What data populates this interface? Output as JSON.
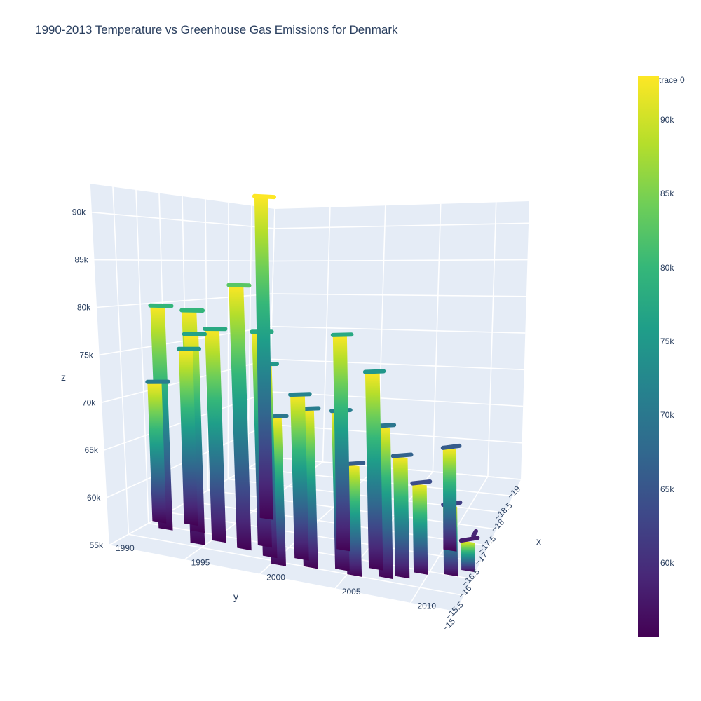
{
  "chart_data": {
    "type": "surface",
    "title": "1990-2013 Temperature vs Greenhouse Gas Emissions for Denmark",
    "trace_name": "trace 0",
    "colorscale": "Viridis",
    "colorscale_stops": [
      "#440154",
      "#482878",
      "#3e4989",
      "#31688e",
      "#26828e",
      "#1f9e89",
      "#35b779",
      "#6ece58",
      "#b5de2b",
      "#fde725"
    ],
    "x_axis": {
      "title": "x",
      "range": [
        1990,
        2013
      ],
      "ticks": [
        "1990",
        "1995",
        "2000",
        "2005",
        "2010"
      ]
    },
    "y_axis": {
      "title": "y",
      "range": [
        -19,
        -15
      ],
      "ticks": [
        "−19",
        "−18.5",
        "−18",
        "−17.5",
        "−17",
        "−16.5",
        "−16",
        "−15.5",
        "−15"
      ]
    },
    "z_axis": {
      "title": "z",
      "range": [
        55000,
        93000
      ],
      "ticks": [
        "55k",
        "60k",
        "65k",
        "70k",
        "75k",
        "80k",
        "85k",
        "90k"
      ]
    },
    "colorbar": {
      "range": [
        55000,
        93000
      ],
      "ticks": [
        "60k",
        "65k",
        "70k",
        "75k",
        "80k",
        "85k",
        "90k"
      ]
    },
    "grid": true,
    "legend_position": "top-right",
    "series": [
      {
        "year": 1990,
        "temperature": -16.1,
        "emissions": 71000
      },
      {
        "year": 1991,
        "temperature": -15.9,
        "emissions": 80000
      },
      {
        "year": 1992,
        "temperature": -16.2,
        "emissions": 75000
      },
      {
        "year": 1993,
        "temperature": -16.0,
        "emissions": 77000
      },
      {
        "year": 1994,
        "temperature": -15.6,
        "emissions": 80000
      },
      {
        "year": 1995,
        "temperature": -15.8,
        "emissions": 78000
      },
      {
        "year": 1996,
        "temperature": -16.8,
        "emissions": 93000
      },
      {
        "year": 1997,
        "temperature": -15.7,
        "emissions": 83000
      },
      {
        "year": 1998,
        "temperature": -15.9,
        "emissions": 78000
      },
      {
        "year": 1999,
        "temperature": -15.6,
        "emissions": 75000
      },
      {
        "year": 2000,
        "temperature": -15.4,
        "emissions": 70000
      },
      {
        "year": 2001,
        "temperature": -15.7,
        "emissions": 72000
      },
      {
        "year": 2002,
        "temperature": -15.5,
        "emissions": 71000
      },
      {
        "year": 2003,
        "temperature": -16.2,
        "emissions": 78000
      },
      {
        "year": 2004,
        "temperature": -15.6,
        "emissions": 71000
      },
      {
        "year": 2005,
        "temperature": -15.5,
        "emissions": 66000
      },
      {
        "year": 2006,
        "temperature": -15.8,
        "emissions": 75000
      },
      {
        "year": 2007,
        "temperature": -15.6,
        "emissions": 70000
      },
      {
        "year": 2008,
        "temperature": -15.7,
        "emissions": 67000
      },
      {
        "year": 2009,
        "temperature": -15.9,
        "emissions": 64000
      },
      {
        "year": 2010,
        "temperature": -16.7,
        "emissions": 66000
      },
      {
        "year": 2011,
        "temperature": -16.0,
        "emissions": 62000
      },
      {
        "year": 2012,
        "temperature": -16.2,
        "emissions": 58000
      },
      {
        "year": 2013,
        "temperature": -16.1,
        "emissions": 59000
      }
    ]
  }
}
